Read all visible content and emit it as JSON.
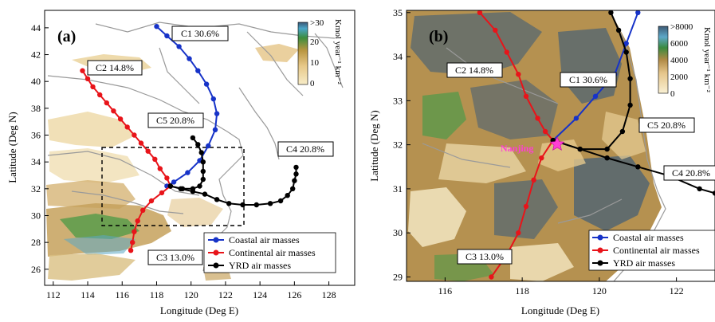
{
  "chart_data": [
    {
      "type": "scatter",
      "panel_label": "(a)",
      "xlabel": "Longitude (Deg E)",
      "ylabel": "Latitude (Deg N)",
      "xlim": [
        111.5,
        129.5
      ],
      "ylim": [
        24.8,
        45.3
      ],
      "x_ticks": [
        "112",
        "114",
        "116",
        "118",
        "120",
        "122",
        "124",
        "126",
        "128"
      ],
      "y_ticks": [
        "26",
        "28",
        "30",
        "32",
        "34",
        "36",
        "38",
        "40",
        "42",
        "44"
      ],
      "colorbar": {
        "unit": "Kmol year⁻¹ km⁻²",
        "ticks": [
          ">30",
          "20",
          "10",
          "0"
        ],
        "range": [
          0,
          30
        ]
      },
      "box": {
        "lon": [
          115,
          123
        ],
        "lat": [
          29,
          35
        ],
        "style": "dashed"
      },
      "legend": {
        "placement": "bottom-right",
        "entries": [
          "Coastal air masses",
          "Continental air masses",
          "YRD air masses"
        ]
      },
      "series": [
        {
          "name": "C1 30.6%",
          "color": "#1733c8",
          "points": [
            [
              118.0,
              44.1
            ],
            [
              118.6,
              43.4
            ],
            [
              119.3,
              42.6
            ],
            [
              119.9,
              41.7
            ],
            [
              120.4,
              40.8
            ],
            [
              120.9,
              39.8
            ],
            [
              121.3,
              38.7
            ],
            [
              121.5,
              37.6
            ],
            [
              121.4,
              36.4
            ],
            [
              121.0,
              35.2
            ],
            [
              120.5,
              34.1
            ],
            [
              119.8,
              33.2
            ],
            [
              119.0,
              32.5
            ],
            [
              118.6,
              32.2
            ]
          ]
        },
        {
          "name": "C2 14.8%",
          "color": "#e8141a",
          "points": [
            [
              113.7,
              40.8
            ],
            [
              114.0,
              40.2
            ],
            [
              114.3,
              39.6
            ],
            [
              114.7,
              39.0
            ],
            [
              115.1,
              38.4
            ],
            [
              115.5,
              37.8
            ],
            [
              115.9,
              37.2
            ],
            [
              116.3,
              36.6
            ],
            [
              116.7,
              36.0
            ],
            [
              117.1,
              35.4
            ],
            [
              117.5,
              34.8
            ],
            [
              117.9,
              34.2
            ],
            [
              118.2,
              33.5
            ],
            [
              118.6,
              32.8
            ],
            [
              118.8,
              32.2
            ]
          ]
        },
        {
          "name": "C3 13.0%",
          "color": "#e8141a",
          "points": [
            [
              118.8,
              32.2
            ],
            [
              118.3,
              31.7
            ],
            [
              117.7,
              31.1
            ],
            [
              117.2,
              30.4
            ],
            [
              116.9,
              29.6
            ],
            [
              116.7,
              28.8
            ],
            [
              116.6,
              28.0
            ],
            [
              116.5,
              27.4
            ]
          ]
        },
        {
          "name": "C4 20.8%",
          "color": "#000000",
          "points": [
            [
              118.8,
              32.2
            ],
            [
              119.4,
              32.0
            ],
            [
              120.1,
              31.8
            ],
            [
              120.8,
              31.6
            ],
            [
              121.5,
              31.2
            ],
            [
              122.2,
              30.9
            ],
            [
              123.0,
              30.8
            ],
            [
              123.8,
              30.8
            ],
            [
              124.6,
              30.9
            ],
            [
              125.2,
              31.1
            ],
            [
              125.6,
              31.5
            ],
            [
              125.9,
              32.0
            ],
            [
              126.0,
              32.6
            ],
            [
              126.1,
              33.1
            ],
            [
              126.1,
              33.6
            ]
          ]
        },
        {
          "name": "C5 20.8%",
          "color": "#000000",
          "points": [
            [
              118.8,
              32.2
            ],
            [
              119.5,
              32.0
            ],
            [
              120.1,
              32.0
            ],
            [
              120.5,
              32.2
            ],
            [
              120.7,
              32.7
            ],
            [
              120.7,
              33.3
            ],
            [
              120.7,
              34.0
            ],
            [
              120.6,
              34.7
            ],
            [
              120.4,
              35.3
            ],
            [
              120.1,
              35.8
            ]
          ]
        }
      ]
    },
    {
      "type": "scatter",
      "panel_label": "(b)",
      "xlabel": "Longitude (Deg E)",
      "ylabel": "Latitude (Deg N)",
      "xlim": [
        115,
        123
      ],
      "ylim": [
        28.9,
        35.05
      ],
      "x_ticks": [
        "116",
        "118",
        "120",
        "122"
      ],
      "y_ticks": [
        "29",
        "30",
        "31",
        "32",
        "33",
        "34",
        "35"
      ],
      "colorbar": {
        "unit": "Kmol year⁻¹ km⁻²",
        "ticks": [
          ">8000",
          "6000",
          "4000",
          "2000",
          "0"
        ],
        "range": [
          0,
          8000
        ]
      },
      "city": {
        "name": "Nanjing",
        "lon": 118.78,
        "lat": 32.06
      },
      "legend": {
        "placement": "bottom-right",
        "entries": [
          "Coastal air masses",
          "Continental air masses",
          "YRD air masses"
        ]
      },
      "series": [
        {
          "name": "C1 30.6%",
          "color": "#1733c8",
          "points": [
            [
              118.8,
              32.1
            ],
            [
              119.4,
              32.6
            ],
            [
              119.9,
              33.1
            ],
            [
              120.4,
              33.6
            ],
            [
              120.7,
              34.3
            ],
            [
              121.0,
              35.0
            ]
          ]
        },
        {
          "name": "C2 14.8%",
          "color": "#e8141a",
          "points": [
            [
              116.9,
              35.0
            ],
            [
              117.3,
              34.6
            ],
            [
              117.6,
              34.1
            ],
            [
              117.9,
              33.6
            ],
            [
              118.1,
              33.1
            ],
            [
              118.4,
              32.6
            ],
            [
              118.6,
              32.3
            ],
            [
              118.8,
              32.1
            ]
          ]
        },
        {
          "name": "C3 13.0%",
          "color": "#e8141a",
          "points": [
            [
              118.8,
              32.1
            ],
            [
              118.5,
              31.7
            ],
            [
              118.3,
              31.2
            ],
            [
              118.1,
              30.6
            ],
            [
              117.9,
              30.0
            ],
            [
              117.6,
              29.5
            ],
            [
              117.2,
              29.0
            ]
          ]
        },
        {
          "name": "C4 20.8%",
          "color": "#000000",
          "points": [
            [
              118.8,
              32.1
            ],
            [
              119.5,
              31.9
            ],
            [
              120.2,
              31.7
            ],
            [
              121.0,
              31.5
            ],
            [
              121.8,
              31.3
            ],
            [
              122.6,
              31.0
            ],
            [
              123.0,
              30.9
            ]
          ]
        },
        {
          "name": "C5 20.8%",
          "color": "#000000",
          "points": [
            [
              118.8,
              32.1
            ],
            [
              119.5,
              31.9
            ],
            [
              120.2,
              31.9
            ],
            [
              120.6,
              32.3
            ],
            [
              120.8,
              32.9
            ],
            [
              120.8,
              33.5
            ],
            [
              120.7,
              34.1
            ],
            [
              120.5,
              34.6
            ],
            [
              120.3,
              35.0
            ]
          ]
        }
      ]
    }
  ]
}
